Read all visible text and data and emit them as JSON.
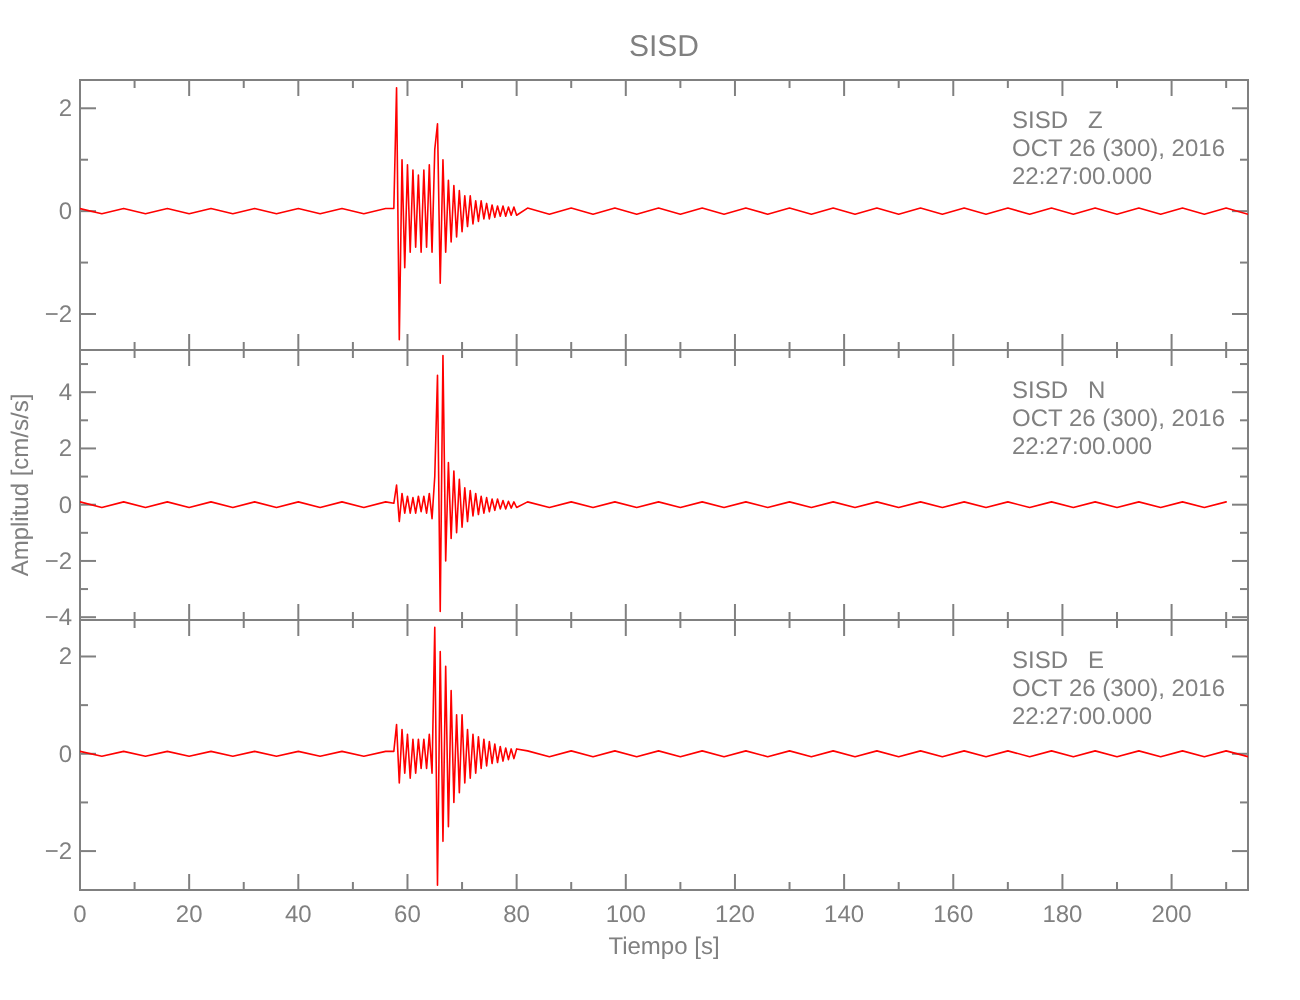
{
  "chart_data": [
    {
      "type": "line",
      "title": "SISD",
      "x": [
        0,
        4,
        8,
        12,
        16,
        20,
        24,
        28,
        32,
        36,
        40,
        44,
        48,
        52,
        56,
        57.5,
        58,
        58.5,
        59,
        59.5,
        60,
        60.5,
        61,
        61.5,
        62,
        62.5,
        63,
        63.5,
        64,
        64.5,
        65,
        65.5,
        66,
        66.5,
        67,
        67.5,
        68,
        68.5,
        69,
        69.5,
        70,
        70.5,
        71,
        71.5,
        72,
        72.5,
        73,
        73.5,
        74,
        74.5,
        75,
        75.5,
        76,
        76.5,
        77,
        77.5,
        78,
        78.5,
        79,
        79.5,
        80,
        82,
        86,
        90,
        94,
        98,
        102,
        106,
        110,
        114,
        118,
        122,
        126,
        130,
        134,
        138,
        142,
        146,
        150,
        154,
        158,
        162,
        166,
        170,
        174,
        178,
        182,
        186,
        190,
        194,
        198,
        202,
        206,
        210,
        214
      ],
      "series": [
        {
          "color": "#ff0000",
          "values": [
            0.05,
            -0.05,
            0.05,
            -0.05,
            0.05,
            -0.05,
            0.05,
            -0.05,
            0.05,
            -0.05,
            0.05,
            -0.05,
            0.05,
            -0.05,
            0.05,
            0.05,
            2.4,
            -2.5,
            1.0,
            -1.1,
            0.9,
            -0.8,
            0.8,
            -0.7,
            0.7,
            -0.8,
            0.8,
            -0.7,
            0.9,
            -0.8,
            1.2,
            1.7,
            -1.4,
            1.0,
            -0.8,
            0.6,
            -0.6,
            0.5,
            -0.5,
            0.4,
            -0.4,
            0.3,
            -0.3,
            0.3,
            -0.25,
            0.2,
            -0.2,
            0.2,
            -0.15,
            0.15,
            -0.15,
            0.12,
            -0.12,
            0.1,
            -0.1,
            0.1,
            -0.1,
            0.08,
            -0.08,
            0.08,
            -0.08,
            0.06,
            -0.06,
            0.06,
            -0.06,
            0.06,
            -0.06,
            0.06,
            -0.06,
            0.06,
            -0.06,
            0.06,
            -0.06,
            0.06,
            -0.06,
            0.06,
            -0.06,
            0.06,
            -0.06,
            0.06,
            -0.06,
            0.06,
            -0.06,
            0.06,
            -0.06,
            0.06,
            -0.06,
            0.06,
            -0.06,
            0.06,
            -0.06,
            0.06,
            -0.06,
            0.06,
            -0.06
          ]
        }
      ],
      "xlim": [
        0,
        214
      ],
      "xticks": [
        0,
        {
          "value": 10,
          "label": null
        },
        20,
        {
          "value": 30,
          "label": null
        },
        40,
        {
          "value": 50,
          "label": null
        },
        60,
        {
          "value": 70,
          "label": null
        },
        80,
        {
          "value": 90,
          "label": null
        },
        100,
        {
          "value": 110,
          "label": null
        },
        120,
        {
          "value": 130,
          "label": null
        },
        140,
        {
          "value": 150,
          "label": null
        },
        160,
        {
          "value": 170,
          "label": null
        },
        180,
        {
          "value": 190,
          "label": null
        },
        200,
        {
          "value": 210,
          "label": null
        }
      ],
      "ylim": [
        -2.7,
        2.55
      ],
      "yticks": [
        {
          "value": -2,
          "label": "−2"
        },
        {
          "value": -1,
          "label": null
        },
        0,
        {
          "value": 1,
          "label": null
        },
        2
      ],
      "tick_labels": "y",
      "annotations": [
        "SISD   Z",
        "OCT 26 (300), 2016",
        "22:27:00.000"
      ]
    },
    {
      "type": "line",
      "ylabel": "Amplitud [cm/s/s]",
      "x": [
        0,
        4,
        8,
        12,
        16,
        20,
        24,
        28,
        32,
        36,
        40,
        44,
        48,
        52,
        56,
        57.5,
        58,
        58.5,
        59,
        59.5,
        60,
        60.5,
        61,
        61.5,
        62,
        62.5,
        63,
        63.5,
        64,
        64.5,
        65,
        65.5,
        66,
        66.5,
        67,
        67.5,
        68,
        68.5,
        69,
        69.5,
        70,
        70.5,
        71,
        71.5,
        72,
        72.5,
        73,
        73.5,
        74,
        74.5,
        75,
        75.5,
        76,
        76.5,
        77,
        77.5,
        78,
        78.5,
        79,
        79.5,
        80,
        82,
        86,
        90,
        94,
        98,
        102,
        106,
        110,
        114,
        118,
        122,
        126,
        130,
        134,
        138,
        142,
        146,
        150,
        154,
        158,
        162,
        166,
        170,
        174,
        178,
        182,
        186,
        190,
        194,
        198,
        202,
        206,
        210
      ],
      "series": [
        {
          "color": "#ff0000",
          "values": [
            0.1,
            -0.1,
            0.1,
            -0.1,
            0.1,
            -0.1,
            0.1,
            -0.1,
            0.1,
            -0.1,
            0.1,
            -0.1,
            0.1,
            -0.1,
            0.1,
            0.05,
            0.7,
            -0.6,
            0.4,
            -0.3,
            0.3,
            -0.3,
            0.25,
            -0.3,
            0.3,
            -0.25,
            0.3,
            -0.3,
            0.4,
            -0.5,
            1.0,
            4.6,
            -3.8,
            5.3,
            -2.0,
            1.5,
            -1.2,
            1.2,
            -1.0,
            0.9,
            -0.8,
            0.6,
            -0.6,
            0.5,
            -0.4,
            0.4,
            -0.35,
            0.3,
            -0.3,
            0.25,
            -0.25,
            0.2,
            -0.2,
            0.2,
            -0.15,
            0.15,
            -0.15,
            0.12,
            -0.12,
            0.1,
            -0.1,
            0.1,
            -0.1,
            0.1,
            -0.1,
            0.1,
            -0.1,
            0.1,
            -0.1,
            0.1,
            -0.1,
            0.1,
            -0.1,
            0.1,
            -0.1,
            0.1,
            -0.1,
            0.1,
            -0.1,
            0.1,
            -0.1,
            0.1,
            -0.1,
            0.1,
            -0.1,
            0.1,
            -0.1,
            0.1,
            -0.1,
            0.1,
            -0.1,
            0.1,
            -0.1,
            0.1
          ]
        }
      ],
      "xlim": [
        0,
        214
      ],
      "xticks": [
        0,
        {
          "value": 10,
          "label": null
        },
        20,
        {
          "value": 30,
          "label": null
        },
        40,
        {
          "value": 50,
          "label": null
        },
        60,
        {
          "value": 70,
          "label": null
        },
        80,
        {
          "value": 90,
          "label": null
        },
        100,
        {
          "value": 110,
          "label": null
        },
        120,
        {
          "value": 130,
          "label": null
        },
        140,
        {
          "value": 150,
          "label": null
        },
        160,
        {
          "value": 170,
          "label": null
        },
        180,
        {
          "value": 190,
          "label": null
        },
        200,
        {
          "value": 210,
          "label": null
        }
      ],
      "ylim": [
        -4.1,
        5.5
      ],
      "yticks": [
        {
          "value": -4,
          "label": "−4"
        },
        {
          "value": -3,
          "label": null
        },
        {
          "value": -2,
          "label": "−2"
        },
        {
          "value": -1,
          "label": null
        },
        0,
        {
          "value": 1,
          "label": null
        },
        2,
        {
          "value": 3,
          "label": null
        },
        4,
        {
          "value": 5,
          "label": null
        }
      ],
      "tick_labels": "y",
      "annotations": [
        "SISD   N",
        "OCT 26 (300), 2016",
        "22:27:00.000"
      ]
    },
    {
      "type": "line",
      "xlabel": "Tiempo [s]",
      "x": [
        0,
        4,
        8,
        12,
        16,
        20,
        24,
        28,
        32,
        36,
        40,
        44,
        48,
        52,
        56,
        57.5,
        58,
        58.5,
        59,
        59.5,
        60,
        60.5,
        61,
        61.5,
        62,
        62.5,
        63,
        63.5,
        64,
        64.5,
        65,
        65.5,
        66,
        66.5,
        67,
        67.5,
        68,
        68.5,
        69,
        69.5,
        70,
        70.5,
        71,
        71.5,
        72,
        72.5,
        73,
        73.5,
        74,
        74.5,
        75,
        75.5,
        76,
        76.5,
        77,
        77.5,
        78,
        78.5,
        79,
        79.5,
        80,
        82,
        86,
        90,
        94,
        98,
        102,
        106,
        110,
        114,
        118,
        122,
        126,
        130,
        134,
        138,
        142,
        146,
        150,
        154,
        158,
        162,
        166,
        170,
        174,
        178,
        182,
        186,
        190,
        194,
        198,
        202,
        206,
        210,
        214
      ],
      "series": [
        {
          "color": "#ff0000",
          "values": [
            0.05,
            -0.05,
            0.05,
            -0.05,
            0.05,
            -0.05,
            0.05,
            -0.05,
            0.05,
            -0.05,
            0.05,
            -0.05,
            0.05,
            -0.05,
            0.05,
            0.05,
            0.6,
            -0.6,
            0.5,
            -0.4,
            0.4,
            -0.5,
            0.3,
            -0.4,
            0.3,
            -0.3,
            0.3,
            -0.3,
            0.4,
            -0.4,
            2.6,
            -2.7,
            2.1,
            -1.8,
            1.8,
            -1.5,
            1.3,
            -1.0,
            0.8,
            -0.8,
            0.8,
            -0.6,
            0.5,
            -0.5,
            0.4,
            -0.4,
            0.35,
            -0.3,
            0.3,
            -0.25,
            0.25,
            -0.2,
            0.2,
            -0.18,
            0.15,
            -0.15,
            0.12,
            -0.12,
            0.1,
            -0.1,
            0.1,
            0.06,
            -0.06,
            0.06,
            -0.06,
            0.06,
            -0.06,
            0.06,
            -0.06,
            0.06,
            -0.06,
            0.06,
            -0.06,
            0.06,
            -0.06,
            0.06,
            -0.06,
            0.06,
            -0.06,
            0.06,
            -0.06,
            0.06,
            -0.06,
            0.06,
            -0.06,
            0.06,
            -0.06,
            0.06,
            -0.06,
            0.06,
            -0.06,
            0.06,
            -0.06,
            0.06,
            -0.06
          ]
        }
      ],
      "xlim": [
        0,
        214
      ],
      "xticks": [
        0,
        {
          "value": 10,
          "label": null
        },
        20,
        {
          "value": 30,
          "label": null
        },
        40,
        {
          "value": 50,
          "label": null
        },
        60,
        {
          "value": 70,
          "label": null
        },
        80,
        {
          "value": 90,
          "label": null
        },
        100,
        {
          "value": 110,
          "label": null
        },
        120,
        {
          "value": 130,
          "label": null
        },
        140,
        {
          "value": 150,
          "label": null
        },
        160,
        {
          "value": 170,
          "label": null
        },
        180,
        {
          "value": 190,
          "label": null
        },
        200,
        {
          "value": 210,
          "label": null
        }
      ],
      "ylim": [
        -2.8,
        2.75
      ],
      "yticks": [
        {
          "value": -2,
          "label": "−2"
        },
        {
          "value": -1,
          "label": null
        },
        0,
        {
          "value": 1,
          "label": null
        },
        2
      ],
      "annotations": [
        "SISD   E",
        "OCT 26 (300), 2016",
        "22:27:00.000"
      ]
    }
  ]
}
